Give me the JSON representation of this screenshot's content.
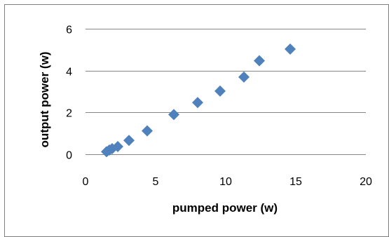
{
  "chart_data": {
    "type": "scatter",
    "title": "",
    "xlabel": "pumped power (w)",
    "ylabel": "output power (w)",
    "xlim": [
      0,
      20
    ],
    "ylim": [
      0,
      6
    ],
    "x_ticks": [
      "0",
      "5",
      "10",
      "15",
      "20"
    ],
    "y_ticks": [
      "0",
      "2",
      "4",
      "6"
    ],
    "grid": "horizontal",
    "legend": "none",
    "marker": "diamond",
    "colors": {
      "series": "#4F81BD",
      "grid": "#868686",
      "border": "#7F7F7F"
    },
    "series": [
      {
        "x": [
          1.5,
          1.7,
          1.9,
          2.3,
          3.1,
          4.4,
          6.3,
          8.0,
          9.6,
          11.3,
          12.4,
          14.6
        ],
        "y": [
          0.12,
          0.2,
          0.27,
          0.37,
          0.66,
          1.12,
          1.9,
          2.47,
          3.02,
          3.69,
          4.47,
          5.03
        ]
      }
    ]
  }
}
